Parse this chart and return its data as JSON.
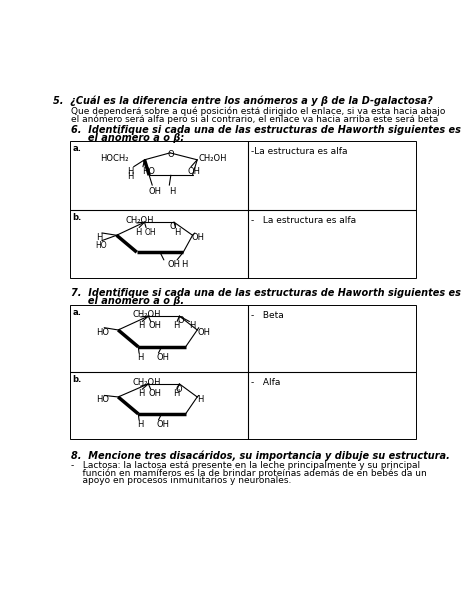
{
  "bg_color": "#ffffff",
  "q5_title": "5.  ¿Cuál es la diferencia entre los anómeros a y β de la D-galactosa?",
  "q5_body1": "Que dependerá sobre a qué posición está dirigido el enlace, si va esta hacia abajo",
  "q5_body2": "el anómero será alfa pero si al contrario, el enlace va hacia arriba este será beta",
  "q6_title1": "6.  Identifique si cada una de las estructuras de Haworth siguientes es",
  "q6_title2": "     el anómero a o β:",
  "q6a_answer": "-La estructura es alfa",
  "q6b_answer": "-   La estructura es alfa",
  "q7_title1": "7.  Identifique si cada una de las estructuras de Haworth siguientes es",
  "q7_title2": "     el anómero a o β.",
  "q7a_answer": "-   Beta",
  "q7b_answer": "-   Alfa",
  "q8_title": "8.  Mencione tres disacáridos, su importancia y dibuje su estructura.",
  "q8_body1": "-   Lactosa: la lactosa está presente en la leche principalmente y su principal",
  "q8_body2": "    función en mamíferos es la de brindar proteínas además de en bebés da un",
  "q8_body3": "    apoyo en procesos inmunitarios y neuronales."
}
